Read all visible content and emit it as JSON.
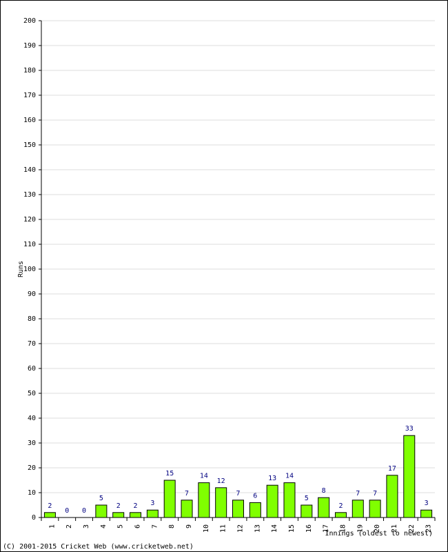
{
  "chart_data": {
    "type": "bar",
    "y_label": "Runs",
    "x_label": "Innings (oldest to newest)",
    "footer": "(C) 2001-2015 Cricket Web (www.cricketweb.net)",
    "categories": [
      "1",
      "2",
      "3",
      "4",
      "5",
      "6",
      "7",
      "8",
      "9",
      "10",
      "11",
      "12",
      "13",
      "14",
      "15",
      "16",
      "17",
      "18",
      "19",
      "20",
      "21",
      "22",
      "23"
    ],
    "values": [
      2,
      0,
      0,
      5,
      2,
      2,
      3,
      15,
      7,
      14,
      12,
      7,
      6,
      13,
      14,
      5,
      8,
      2,
      7,
      7,
      17,
      33,
      3
    ],
    "color": "#80ff00",
    "ylim": [
      0,
      200
    ],
    "yticks": [
      0,
      10,
      20,
      30,
      40,
      50,
      60,
      70,
      80,
      90,
      100,
      110,
      120,
      130,
      140,
      150,
      160,
      170,
      180,
      190,
      200
    ],
    "grid": true
  }
}
